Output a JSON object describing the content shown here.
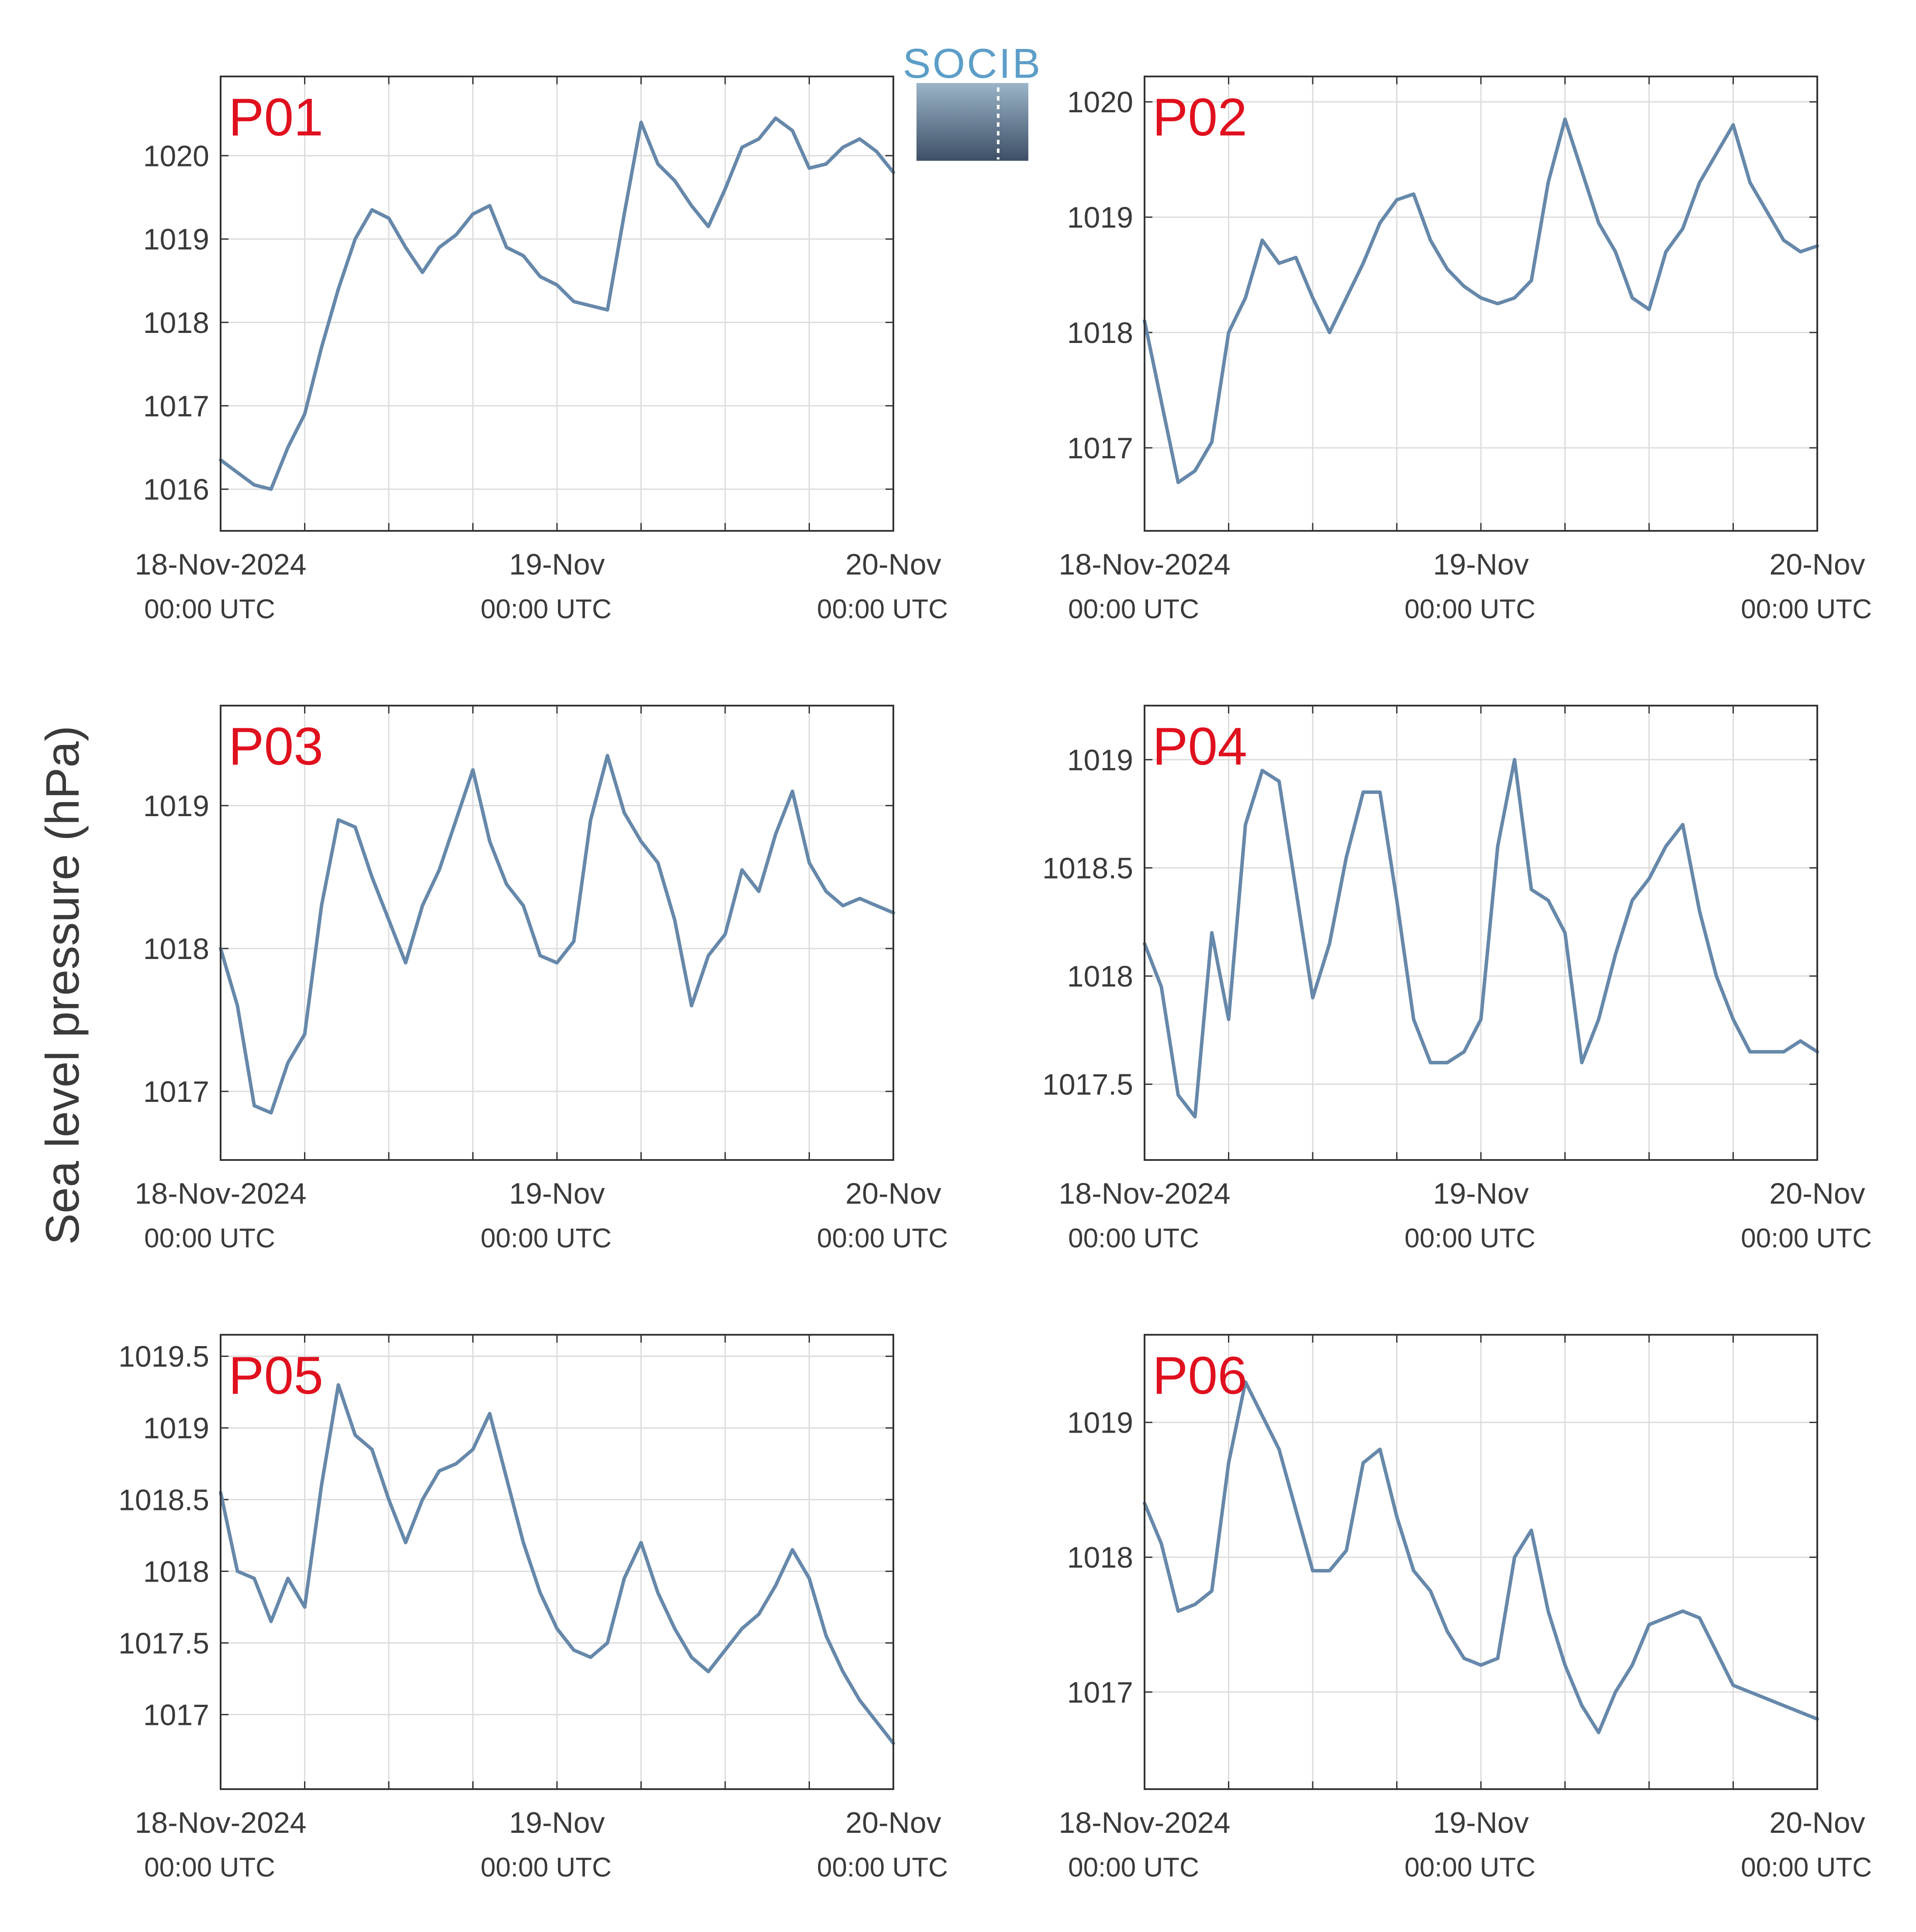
{
  "figure": {
    "ylabel": "Sea level pressure (hPa)",
    "logo_text": "SOCIB"
  },
  "chart_data": [
    {
      "type": "line",
      "panel": "P01",
      "series": [
        {
          "x": [
            0.0,
            0.05,
            0.1,
            0.15,
            0.2,
            0.25,
            0.3,
            0.35,
            0.4,
            0.45,
            0.5,
            0.55,
            0.6,
            0.65,
            0.7,
            0.75,
            0.8,
            0.85,
            0.9,
            0.95,
            1.0,
            1.05,
            1.1,
            1.15,
            1.2,
            1.25,
            1.3,
            1.35,
            1.4,
            1.45,
            1.5,
            1.55,
            1.6,
            1.65,
            1.7,
            1.75,
            1.8,
            1.85,
            1.9,
            1.95,
            2.0
          ],
          "values": [
            1016.35,
            1016.2,
            1016.05,
            1016.0,
            1016.5,
            1016.9,
            1017.7,
            1018.4,
            1019.0,
            1019.35,
            1019.25,
            1018.9,
            1018.6,
            1018.9,
            1019.05,
            1019.3,
            1019.4,
            1018.9,
            1018.8,
            1018.55,
            1018.45,
            1018.25,
            1018.2,
            1018.15,
            1019.3,
            1020.4,
            1019.9,
            1019.7,
            1019.4,
            1019.15,
            1019.6,
            1020.1,
            1020.2,
            1020.45,
            1020.3,
            1019.85,
            1019.9,
            1020.1,
            1020.2,
            1020.05,
            1019.8
          ]
        }
      ],
      "ylim": [
        1015.5,
        1020.95
      ],
      "yticks": [
        "1016",
        "1017",
        "1018",
        "1019",
        "1020"
      ],
      "xticks": [
        {
          "label": "18-Nov-2024",
          "sub": "00:00 UTC"
        },
        {
          "label": "19-Nov",
          "sub": "00:00 UTC"
        },
        {
          "label": "20-Nov",
          "sub": "00:00 UTC"
        }
      ],
      "color": "#6688aa"
    },
    {
      "type": "line",
      "panel": "P02",
      "series": [
        {
          "x": [
            0.0,
            0.05,
            0.1,
            0.15,
            0.2,
            0.25,
            0.3,
            0.35,
            0.4,
            0.45,
            0.5,
            0.55,
            0.6,
            0.65,
            0.7,
            0.75,
            0.8,
            0.85,
            0.9,
            0.95,
            1.0,
            1.05,
            1.1,
            1.15,
            1.2,
            1.25,
            1.3,
            1.35,
            1.4,
            1.45,
            1.5,
            1.55,
            1.6,
            1.65,
            1.7,
            1.75,
            1.8,
            1.85,
            1.9,
            1.95,
            2.0
          ],
          "values": [
            1018.1,
            1017.4,
            1016.7,
            1016.8,
            1017.05,
            1018.0,
            1018.3,
            1018.8,
            1018.6,
            1018.65,
            1018.3,
            1018.0,
            1018.3,
            1018.6,
            1018.95,
            1019.15,
            1019.2,
            1018.8,
            1018.55,
            1018.4,
            1018.3,
            1018.25,
            1018.3,
            1018.45,
            1019.3,
            1019.85,
            1019.4,
            1018.95,
            1018.7,
            1018.3,
            1018.2,
            1018.7,
            1018.9,
            1019.3,
            1019.55,
            1019.8,
            1019.3,
            1019.05,
            1018.8,
            1018.7,
            1018.75
          ]
        }
      ],
      "ylim": [
        1016.28,
        1020.22
      ],
      "yticks": [
        "1017",
        "1018",
        "1019",
        "1020"
      ],
      "xticks": [
        {
          "label": "18-Nov-2024",
          "sub": "00:00 UTC"
        },
        {
          "label": "19-Nov",
          "sub": "00:00 UTC"
        },
        {
          "label": "20-Nov",
          "sub": "00:00 UTC"
        }
      ],
      "color": "#6688aa"
    },
    {
      "type": "line",
      "panel": "P03",
      "series": [
        {
          "x": [
            0.0,
            0.05,
            0.1,
            0.15,
            0.2,
            0.25,
            0.3,
            0.35,
            0.4,
            0.45,
            0.5,
            0.55,
            0.6,
            0.65,
            0.7,
            0.75,
            0.8,
            0.85,
            0.9,
            0.95,
            1.0,
            1.05,
            1.1,
            1.15,
            1.2,
            1.25,
            1.3,
            1.35,
            1.4,
            1.45,
            1.5,
            1.55,
            1.6,
            1.65,
            1.7,
            1.75,
            1.8,
            1.85,
            1.9,
            1.95,
            2.0
          ],
          "values": [
            1018.0,
            1017.6,
            1016.9,
            1016.85,
            1017.2,
            1017.4,
            1018.3,
            1018.9,
            1018.85,
            1018.5,
            1018.2,
            1017.9,
            1018.3,
            1018.55,
            1018.9,
            1019.25,
            1018.75,
            1018.45,
            1018.3,
            1017.95,
            1017.9,
            1018.05,
            1018.9,
            1019.35,
            1018.95,
            1018.75,
            1018.6,
            1018.2,
            1017.6,
            1017.95,
            1018.1,
            1018.55,
            1018.4,
            1018.8,
            1019.1,
            1018.6,
            1018.4,
            1018.3,
            1018.35,
            1018.3,
            1018.25
          ]
        }
      ],
      "ylim": [
        1016.52,
        1019.7
      ],
      "yticks": [
        "1017",
        "1018",
        "1019"
      ],
      "xticks": [
        {
          "label": "18-Nov-2024",
          "sub": "00:00 UTC"
        },
        {
          "label": "19-Nov",
          "sub": "00:00 UTC"
        },
        {
          "label": "20-Nov",
          "sub": "00:00 UTC"
        }
      ],
      "color": "#6688aa"
    },
    {
      "type": "line",
      "panel": "P04",
      "series": [
        {
          "x": [
            0.0,
            0.05,
            0.1,
            0.15,
            0.2,
            0.25,
            0.3,
            0.35,
            0.4,
            0.45,
            0.5,
            0.55,
            0.6,
            0.65,
            0.7,
            0.75,
            0.8,
            0.85,
            0.9,
            0.95,
            1.0,
            1.05,
            1.1,
            1.15,
            1.2,
            1.25,
            1.3,
            1.35,
            1.4,
            1.45,
            1.5,
            1.55,
            1.6,
            1.65,
            1.7,
            1.75,
            1.8,
            1.85,
            1.9,
            1.95,
            2.0
          ],
          "values": [
            1018.15,
            1017.95,
            1017.45,
            1017.35,
            1018.2,
            1017.8,
            1018.7,
            1018.95,
            1018.9,
            1018.4,
            1017.9,
            1018.15,
            1018.55,
            1018.85,
            1018.85,
            1018.35,
            1017.8,
            1017.6,
            1017.6,
            1017.65,
            1017.8,
            1018.6,
            1019.0,
            1018.4,
            1018.35,
            1018.2,
            1017.6,
            1017.8,
            1018.1,
            1018.35,
            1018.45,
            1018.6,
            1018.7,
            1018.3,
            1018.0,
            1017.8,
            1017.65,
            1017.65,
            1017.65,
            1017.7,
            1017.65
          ]
        }
      ],
      "ylim": [
        1017.15,
        1019.25
      ],
      "yticks": [
        "1017.5",
        "1018",
        "1018.5",
        "1019"
      ],
      "xticks": [
        {
          "label": "18-Nov-2024",
          "sub": "00:00 UTC"
        },
        {
          "label": "19-Nov",
          "sub": "00:00 UTC"
        },
        {
          "label": "20-Nov",
          "sub": "00:00 UTC"
        }
      ],
      "color": "#6688aa"
    },
    {
      "type": "line",
      "panel": "P05",
      "series": [
        {
          "x": [
            0.0,
            0.05,
            0.1,
            0.15,
            0.2,
            0.25,
            0.3,
            0.35,
            0.4,
            0.45,
            0.5,
            0.55,
            0.6,
            0.65,
            0.7,
            0.75,
            0.8,
            0.85,
            0.9,
            0.95,
            1.0,
            1.05,
            1.1,
            1.15,
            1.2,
            1.25,
            1.3,
            1.35,
            1.4,
            1.45,
            1.5,
            1.55,
            1.6,
            1.65,
            1.7,
            1.75,
            1.8,
            1.85,
            1.9,
            1.95,
            2.0
          ],
          "values": [
            1018.55,
            1018.0,
            1017.95,
            1017.65,
            1017.95,
            1017.75,
            1018.6,
            1019.3,
            1018.95,
            1018.85,
            1018.5,
            1018.2,
            1018.5,
            1018.7,
            1018.75,
            1018.85,
            1019.1,
            1018.65,
            1018.2,
            1017.85,
            1017.6,
            1017.45,
            1017.4,
            1017.5,
            1017.95,
            1018.2,
            1017.85,
            1017.6,
            1017.4,
            1017.3,
            1017.45,
            1017.6,
            1017.7,
            1017.9,
            1018.15,
            1017.95,
            1017.55,
            1017.3,
            1017.1,
            1016.95,
            1016.8
          ]
        }
      ],
      "ylim": [
        1016.48,
        1019.65
      ],
      "yticks": [
        "1017",
        "1017.5",
        "1018",
        "1018.5",
        "1019",
        "1019.5"
      ],
      "xticks": [
        {
          "label": "18-Nov-2024",
          "sub": "00:00 UTC"
        },
        {
          "label": "19-Nov",
          "sub": "00:00 UTC"
        },
        {
          "label": "20-Nov",
          "sub": "00:00 UTC"
        }
      ],
      "color": "#6688aa"
    },
    {
      "type": "line",
      "panel": "P06",
      "series": [
        {
          "x": [
            0.0,
            0.05,
            0.1,
            0.15,
            0.2,
            0.25,
            0.3,
            0.35,
            0.4,
            0.45,
            0.5,
            0.55,
            0.6,
            0.65,
            0.7,
            0.75,
            0.8,
            0.85,
            0.9,
            0.95,
            1.0,
            1.05,
            1.1,
            1.15,
            1.2,
            1.25,
            1.3,
            1.35,
            1.4,
            1.45,
            1.5,
            1.55,
            1.6,
            1.65,
            1.7,
            1.75,
            1.8,
            1.85,
            1.9,
            1.95,
            2.0
          ],
          "values": [
            1018.4,
            1018.1,
            1017.6,
            1017.65,
            1017.75,
            1018.7,
            1019.3,
            1019.05,
            1018.8,
            1018.35,
            1017.9,
            1017.9,
            1018.05,
            1018.7,
            1018.8,
            1018.3,
            1017.9,
            1017.75,
            1017.45,
            1017.25,
            1017.2,
            1017.25,
            1018.0,
            1018.2,
            1017.6,
            1017.2,
            1016.9,
            1016.7,
            1017.0,
            1017.2,
            1017.5,
            1017.55,
            1017.6,
            1017.55,
            1017.3,
            1017.05,
            1017.0,
            1016.95,
            1016.9,
            1016.85,
            1016.8
          ]
        }
      ],
      "ylim": [
        1016.28,
        1019.65
      ],
      "yticks": [
        "1017",
        "1018",
        "1019"
      ],
      "xticks": [
        {
          "label": "18-Nov-2024",
          "sub": "00:00 UTC"
        },
        {
          "label": "19-Nov",
          "sub": "00:00 UTC"
        },
        {
          "label": "20-Nov",
          "sub": "00:00 UTC"
        }
      ],
      "color": "#6688aa"
    }
  ]
}
